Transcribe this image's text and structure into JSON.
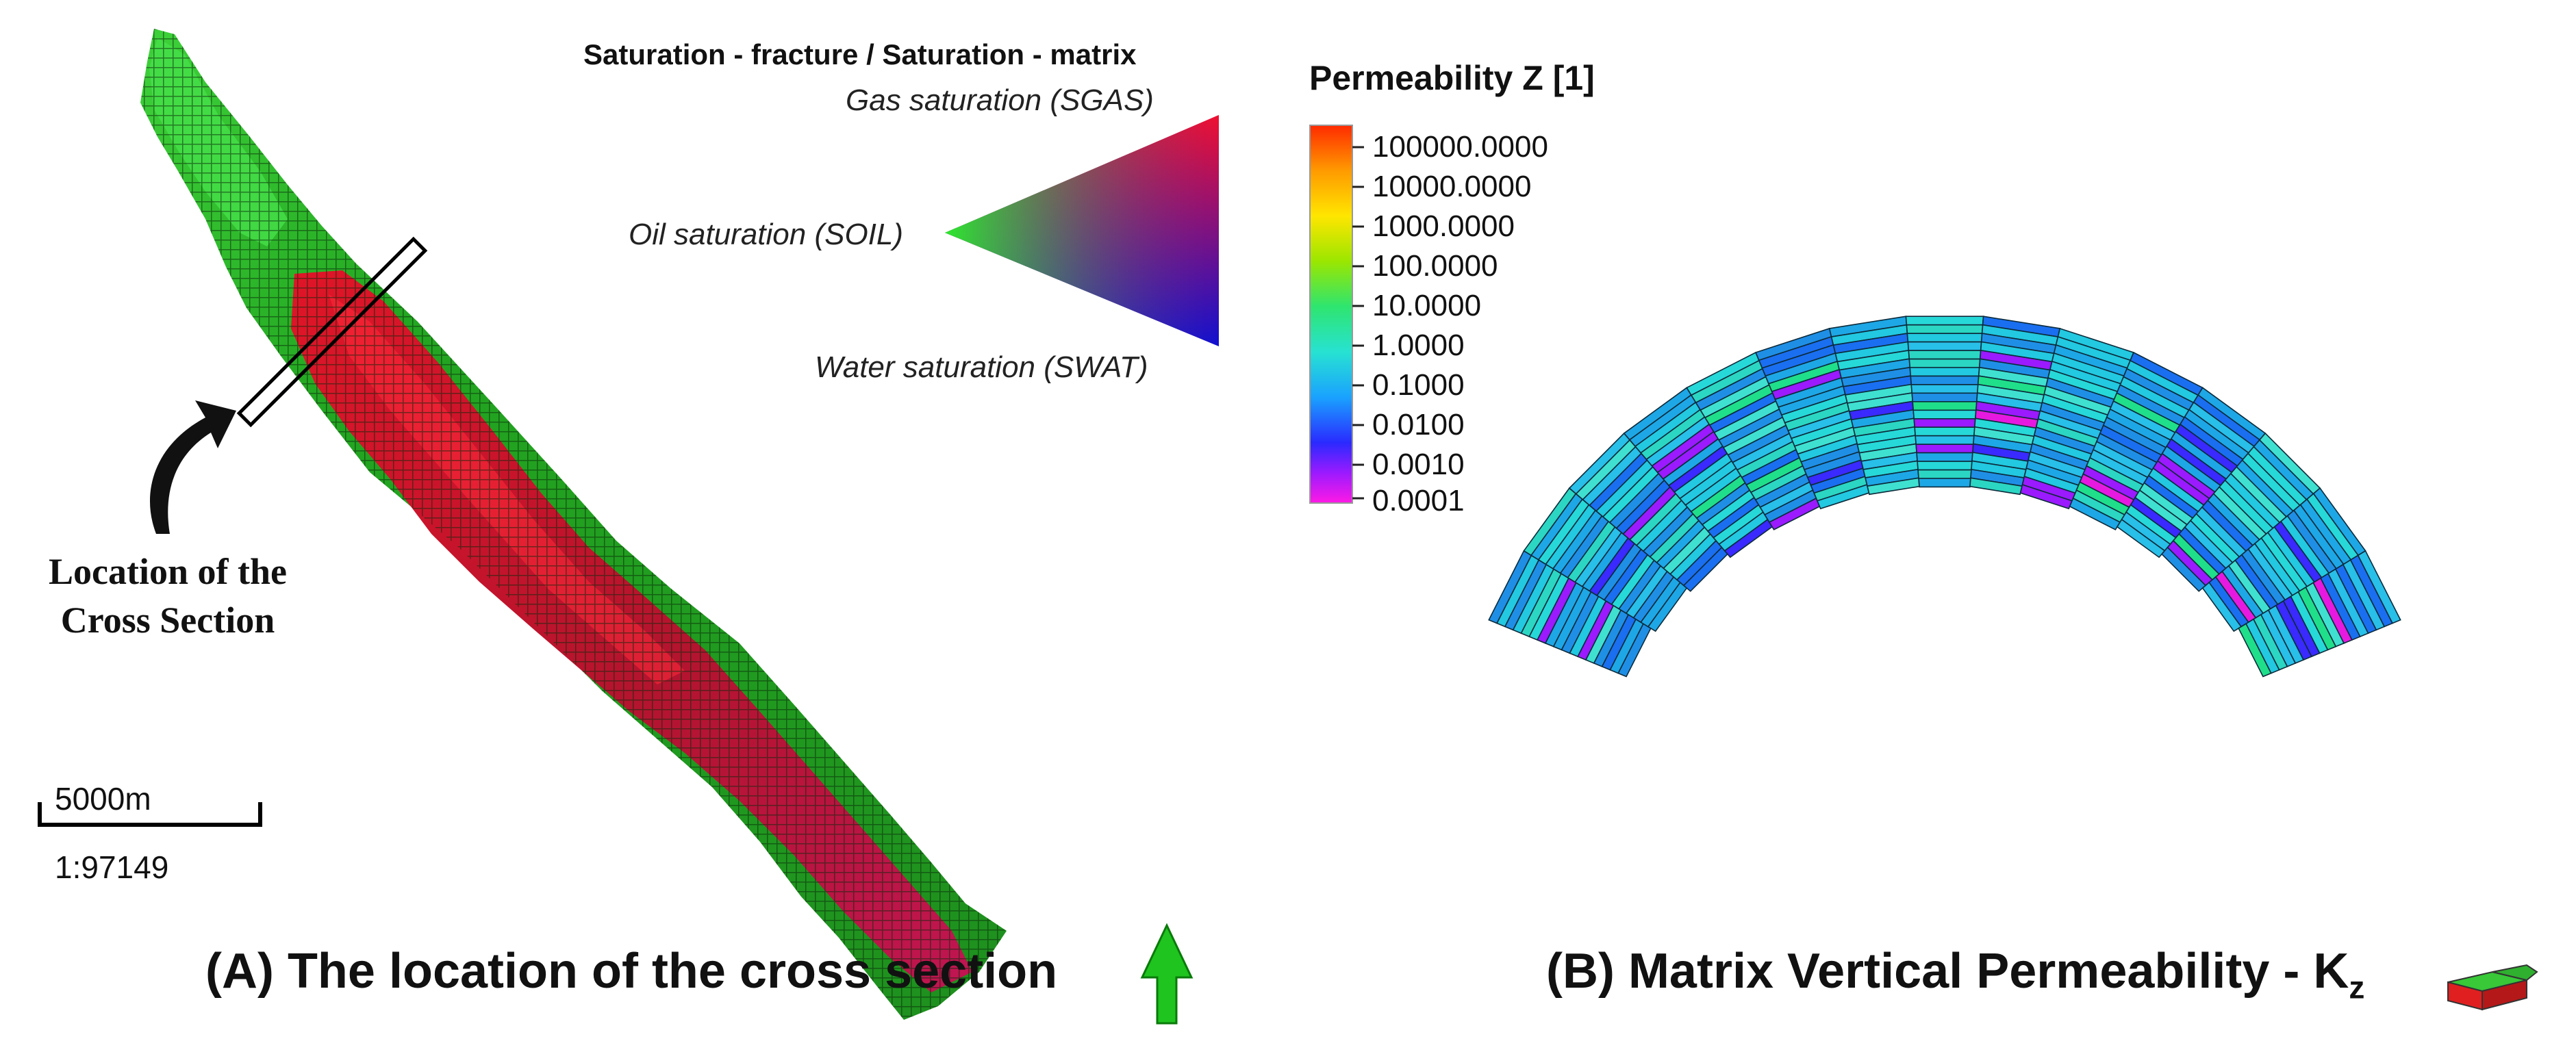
{
  "panel_a": {
    "caption": "(A) The location of the cross section",
    "callout_line1": "Location of the",
    "callout_line2": "Cross Section",
    "scale_label": "5000m",
    "scale_ratio": "1:97149"
  },
  "ternary_legend": {
    "title": "Saturation - fracture / Saturation - matrix",
    "gas_label": "Gas saturation (SGAS)",
    "oil_label": "Oil saturation (SOIL)",
    "water_label": "Water saturation (SWAT)",
    "colors": {
      "gas": "#e8112d",
      "oil": "#2ecc2e",
      "water": "#1a1acc"
    }
  },
  "perm_legend": {
    "title": "Permeability Z [1]",
    "ticks": [
      "100000.0000",
      "10000.0000",
      "1000.0000",
      "100.0000",
      "10.0000",
      "1.0000",
      "0.1000",
      "0.0100",
      "0.0010",
      "0.0001"
    ]
  },
  "panel_b": {
    "caption_main": "(B) Matrix Vertical Permeability - K",
    "caption_sub": "z"
  }
}
